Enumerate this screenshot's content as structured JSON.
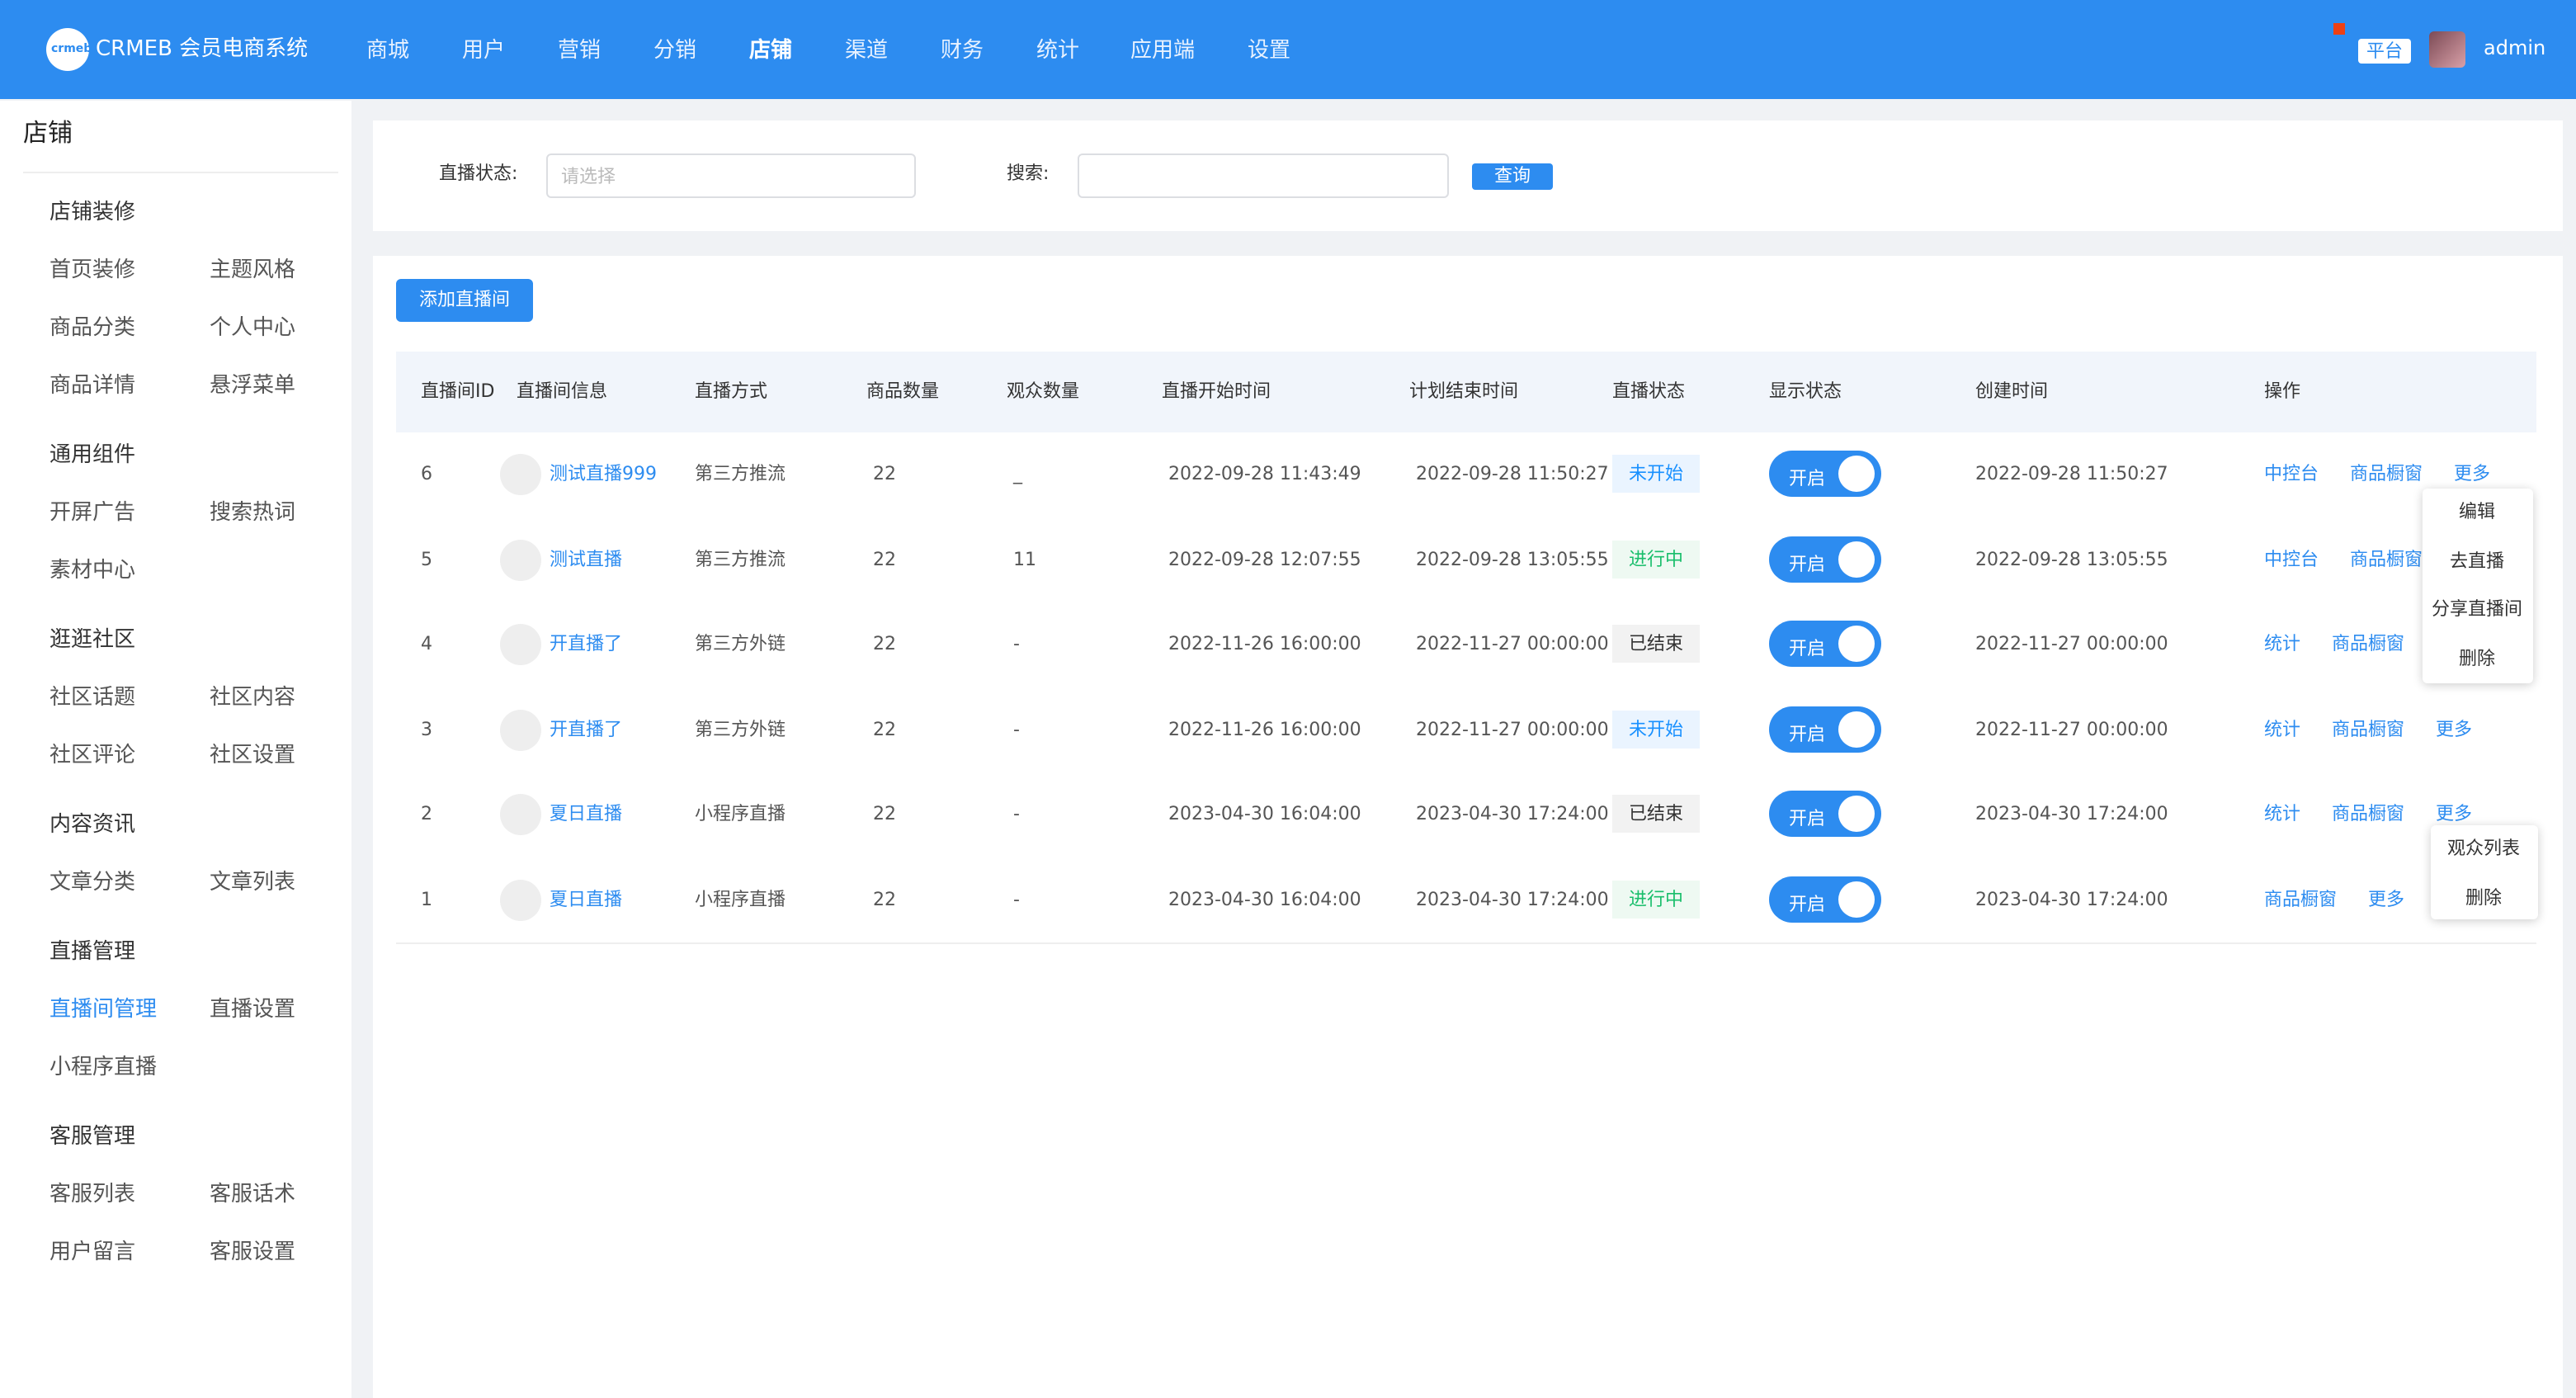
{
  "header": {
    "logo": "crmeb",
    "title": "CRMEB 会员电商系统",
    "nav": [
      "商城",
      "用户",
      "营销",
      "分销",
      "店铺",
      "渠道",
      "财务",
      "统计",
      "应用端",
      "设置"
    ],
    "active": 4,
    "badge": "平台",
    "user": "admin"
  },
  "sidebar": {
    "title": "店铺",
    "groups": [
      {
        "title": "店铺装修",
        "items": [
          {
            "label": "首页装修"
          },
          {
            "label": "主题风格"
          },
          {
            "label": "商品分类"
          },
          {
            "label": "个人中心"
          },
          {
            "label": "商品详情"
          },
          {
            "label": "悬浮菜单"
          }
        ]
      },
      {
        "title": "通用组件",
        "items": [
          {
            "label": "开屏广告"
          },
          {
            "label": "搜索热词"
          },
          {
            "label": "素材中心"
          }
        ]
      },
      {
        "title": "逛逛社区",
        "items": [
          {
            "label": "社区话题"
          },
          {
            "label": "社区内容"
          },
          {
            "label": "社区评论"
          },
          {
            "label": "社区设置"
          }
        ]
      },
      {
        "title": "内容资讯",
        "items": [
          {
            "label": "文章分类"
          },
          {
            "label": "文章列表"
          }
        ]
      },
      {
        "title": "直播管理",
        "items": [
          {
            "label": "直播间管理",
            "active": true
          },
          {
            "label": "直播设置"
          },
          {
            "label": "小程序直播"
          }
        ]
      },
      {
        "title": "客服管理",
        "items": [
          {
            "label": "客服列表"
          },
          {
            "label": "客服话术"
          },
          {
            "label": "用户留言"
          },
          {
            "label": "客服设置"
          }
        ]
      }
    ]
  },
  "filter": {
    "status_label": "直播状态:",
    "status_placeholder": "请选择",
    "search_label": "搜索:",
    "button": "查询"
  },
  "table": {
    "add_button": "添加直播间",
    "headers": [
      "直播间ID",
      "直播间信息",
      "直播方式",
      "商品数量",
      "观众数量",
      "直播开始时间",
      "计划结束时间",
      "直播状态",
      "显示状态",
      "创建时间",
      "操作"
    ],
    "rows": [
      {
        "id": "6",
        "name": "测试直播999",
        "method": "第三方推流",
        "goods": "22",
        "viewers": "_",
        "start": "2022-09-28 11:43:49",
        "end": "2022-09-28 11:50:27",
        "status": "未开始",
        "status_color": "#1890ff",
        "display": "开启",
        "created": "2022-09-28 11:50:27",
        "actions": [
          "中控台",
          "商品橱窗",
          "更多"
        ]
      },
      {
        "id": "5",
        "name": "测试直播",
        "method": "第三方推流",
        "goods": "22",
        "viewers": "11",
        "start": "2022-09-28 12:07:55",
        "end": "2022-09-28 13:05:55",
        "status": "进行中",
        "status_color": "#19be6b",
        "display": "开启",
        "created": "2022-09-28 13:05:55",
        "actions": [
          "中控台",
          "商品橱窗"
        ]
      },
      {
        "id": "4",
        "name": "开直播了",
        "method": "第三方外链",
        "goods": "22",
        "viewers": "-",
        "start": "2022-11-26 16:00:00",
        "end": "2022-11-27 00:00:00",
        "status": "已结束",
        "status_color": "#333333",
        "display": "开启",
        "created": "2022-11-27 00:00:00",
        "actions": [
          "统计",
          "商品橱窗"
        ]
      },
      {
        "id": "3",
        "name": "开直播了",
        "method": "第三方外链",
        "goods": "22",
        "viewers": "-",
        "start": "2022-11-26 16:00:00",
        "end": "2022-11-27 00:00:00",
        "status": "未开始",
        "status_color": "#1890ff",
        "display": "开启",
        "created": "2022-11-27 00:00:00",
        "actions": [
          "统计",
          "商品橱窗",
          "更多"
        ]
      },
      {
        "id": "2",
        "name": "夏日直播",
        "method": "小程序直播",
        "goods": "22",
        "viewers": "-",
        "start": "2023-04-30 16:04:00",
        "end": "2023-04-30 17:24:00",
        "status": "已结束",
        "status_color": "#333333",
        "display": "开启",
        "created": "2023-04-30 17:24:00",
        "actions": [
          "统计",
          "商品橱窗",
          "更多"
        ]
      },
      {
        "id": "1",
        "name": "夏日直播",
        "method": "小程序直播",
        "goods": "22",
        "viewers": "-",
        "start": "2023-04-30 16:04:00",
        "end": "2023-04-30 17:24:00",
        "status": "进行中",
        "status_color": "#19be6b",
        "display": "开启",
        "created": "2023-04-30 17:24:00",
        "actions": [
          "商品橱窗",
          "更多"
        ]
      }
    ]
  },
  "menus": [
    {
      "items": [
        "编辑",
        "去直播",
        "分享直播间",
        "删除"
      ]
    },
    {
      "items": [
        "观众列表",
        "删除"
      ]
    }
  ]
}
